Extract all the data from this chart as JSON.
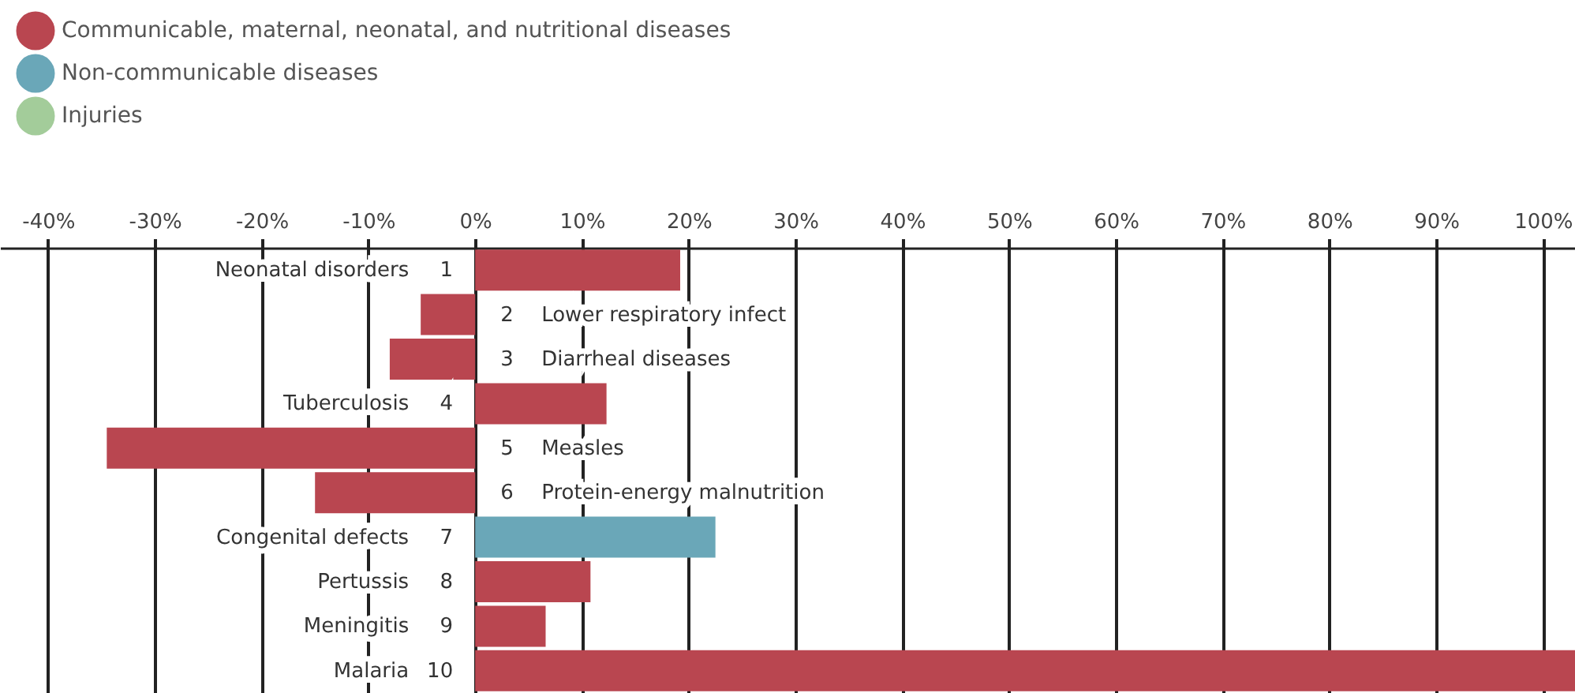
{
  "chart_data": {
    "type": "bar",
    "orientation": "horizontal",
    "categories": [
      "Neonatal disorders",
      "Lower respiratory infect",
      "Diarrheal diseases",
      "Tuberculosis",
      "Measles",
      "Protein-energy malnutrition",
      "Congenital defects",
      "Pertussis",
      "Meningitis",
      "Malaria"
    ],
    "series": [
      {
        "name": "Communicable, maternal, neonatal, and nutritional diseases",
        "color": "#b94650",
        "values": [
          19.2,
          -5.1,
          -8.0,
          12.3,
          -34.5,
          -15.0,
          null,
          10.8,
          6.6,
          103
        ]
      },
      {
        "name": "Non-communicable diseases",
        "color": "#6aa7b8",
        "values": [
          null,
          null,
          null,
          null,
          null,
          null,
          22.5,
          null,
          null,
          null
        ]
      },
      {
        "name": "Injuries",
        "color": "#a3cc9a",
        "values": [
          null,
          null,
          null,
          null,
          null,
          null,
          null,
          null,
          null,
          null
        ]
      }
    ],
    "annotations": [
      "1",
      "2",
      "3",
      "4",
      "5",
      "6",
      "7",
      "8",
      "9",
      "10"
    ],
    "xlim": [
      -44.5,
      103
    ],
    "xticks": [
      {
        "value": -40,
        "label": "-40%"
      },
      {
        "value": -30,
        "label": "-30%"
      },
      {
        "value": -20,
        "label": "-20%"
      },
      {
        "value": -10,
        "label": "-10%"
      },
      {
        "value": 0,
        "label": "0%"
      },
      {
        "value": 10,
        "label": "10%"
      },
      {
        "value": 20,
        "label": "20%"
      },
      {
        "value": 30,
        "label": "30%"
      },
      {
        "value": 40,
        "label": "40%"
      },
      {
        "value": 50,
        "label": "50%"
      },
      {
        "value": 60,
        "label": "60%"
      },
      {
        "value": 70,
        "label": "70%"
      },
      {
        "value": 80,
        "label": "80%"
      },
      {
        "value": 90,
        "label": "90%"
      },
      {
        "value": 100,
        "label": "100%"
      }
    ],
    "grid": "x",
    "legend": "top left"
  }
}
